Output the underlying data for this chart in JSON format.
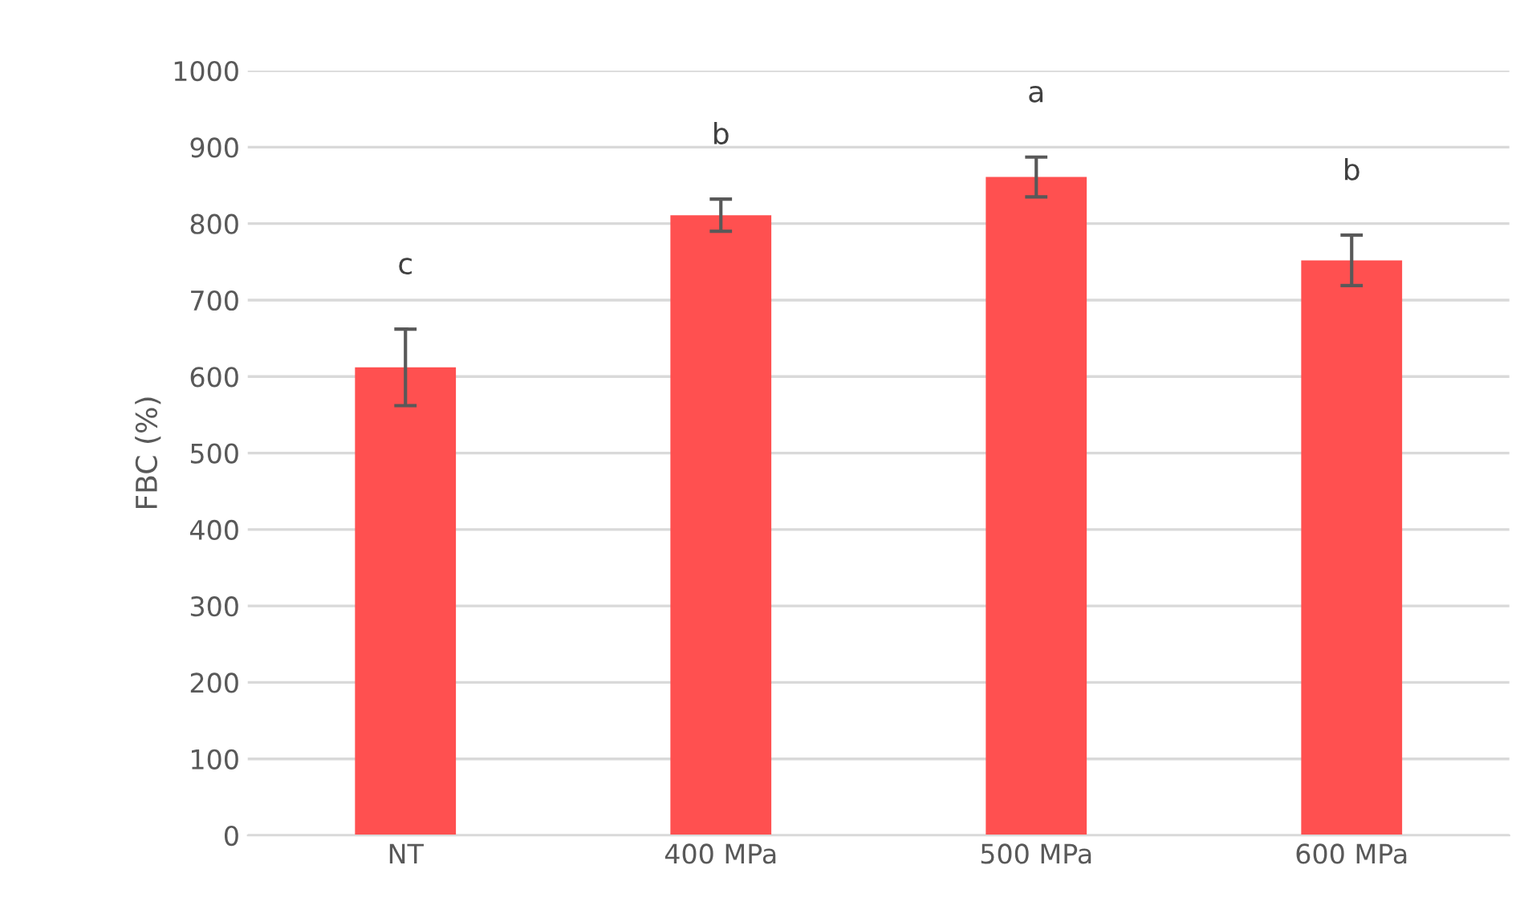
{
  "chart_data": {
    "type": "bar",
    "ylabel": "FBC (%)",
    "categories": [
      "NT",
      "400 MPa",
      "500 MPa",
      "600 MPa"
    ],
    "values": [
      612,
      811,
      861,
      752
    ],
    "errors": [
      50,
      21,
      26,
      33
    ],
    "color": "#ff5050",
    "ylim": [
      0,
      1000
    ],
    "yticks": [
      0,
      100,
      200,
      300,
      400,
      500,
      600,
      700,
      800,
      900,
      1000
    ],
    "grid": "y",
    "annotations": [
      "c",
      "b",
      "a",
      "b"
    ]
  }
}
